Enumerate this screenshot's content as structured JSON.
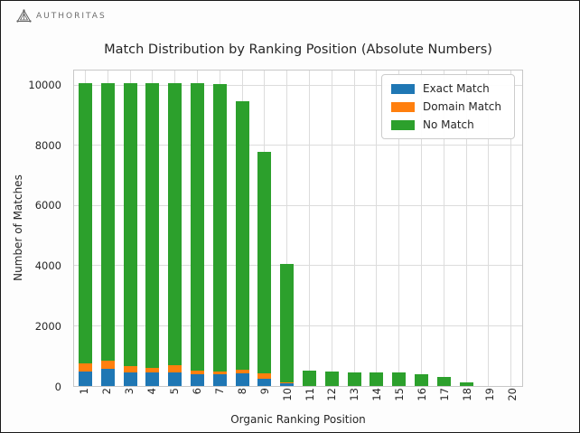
{
  "branding": {
    "logo_text": "AUTHORITAS"
  },
  "chart_data": {
    "type": "bar",
    "subtype": "stacked",
    "title": "Match Distribution by Ranking Position (Absolute Numbers)",
    "xlabel": "Organic Ranking Position",
    "ylabel": "Number of Matches",
    "categories": [
      "1",
      "2",
      "3",
      "4",
      "5",
      "6",
      "7",
      "8",
      "9",
      "10",
      "11",
      "12",
      "13",
      "14",
      "15",
      "16",
      "17",
      "18",
      "19",
      "20"
    ],
    "series": [
      {
        "name": "Exact Match",
        "color": "#1f77b4",
        "values": [
          480,
          580,
          460,
          460,
          440,
          400,
          400,
          430,
          240,
          80,
          0,
          0,
          0,
          0,
          0,
          0,
          0,
          0,
          0,
          0
        ]
      },
      {
        "name": "Domain Match",
        "color": "#ff7f0e",
        "values": [
          280,
          260,
          200,
          140,
          240,
          100,
          80,
          120,
          180,
          40,
          0,
          0,
          0,
          0,
          0,
          0,
          0,
          0,
          0,
          0
        ]
      },
      {
        "name": "No Match",
        "color": "#2ca02c",
        "values": [
          9320,
          9240,
          9420,
          9480,
          9400,
          9580,
          9560,
          8920,
          7380,
          3930,
          500,
          490,
          460,
          450,
          450,
          380,
          290,
          120,
          0,
          0
        ]
      }
    ],
    "ylim": [
      0,
      10500
    ],
    "yticks": [
      0,
      2000,
      4000,
      6000,
      8000,
      10000
    ],
    "grid": true,
    "legend_position": "upper right",
    "grid_color": "#dcdcdc",
    "text_color": "#262626"
  }
}
